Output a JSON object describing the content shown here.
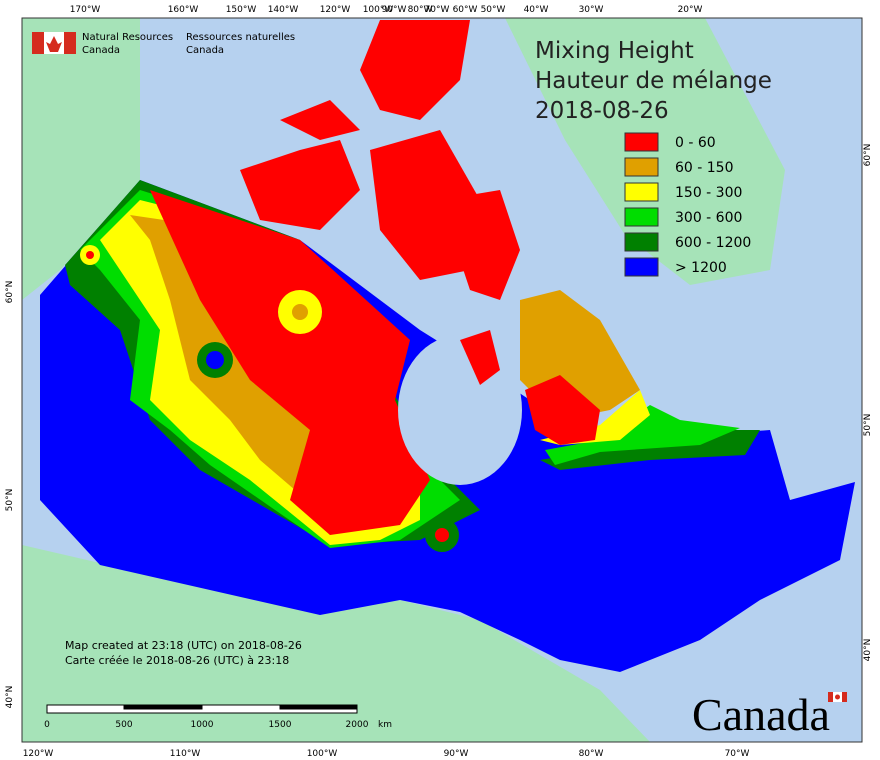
{
  "header": {
    "org_en": [
      "Natural Resources",
      "Canada"
    ],
    "org_fr": [
      "Ressources naturelles",
      "Canada"
    ]
  },
  "title": [
    "Mixing Height",
    "Hauteur de mélange",
    "2018-08-26"
  ],
  "legend": [
    {
      "label": "0 - 60",
      "color": "#ff0000"
    },
    {
      "label": "60 - 150",
      "color": "#e0a000"
    },
    {
      "label": "150 - 300",
      "color": "#ffff00"
    },
    {
      "label": "300 - 600",
      "color": "#00dd00"
    },
    {
      "label": "600 - 1200",
      "color": "#008000"
    },
    {
      "label": "> 1200",
      "color": "#0000ff"
    }
  ],
  "top_labels": [
    "170°W",
    "160°W",
    "150°W",
    "140°W",
    "120°W",
    "100°W",
    "90°W",
    "80°W",
    "70°W",
    "60°W",
    "50°W",
    "40°W",
    "30°W",
    "20°W"
  ],
  "bottom_labels": [
    "120°W",
    "110°W",
    "100°W",
    "90°W",
    "80°W",
    "70°W"
  ],
  "left_labels": [
    "60°N",
    "50°N",
    "40°N"
  ],
  "right_labels": [
    "60°N",
    "50°N",
    "40°N"
  ],
  "notes": [
    "Map created at 23:18 (UTC) on 2018-08-26",
    "Carte créée le 2018-08-26 (UTC) à 23:18"
  ],
  "scale_bar": [
    "0",
    "500",
    "1000",
    "1500",
    "2000",
    "km"
  ],
  "wordmark": "Canada"
}
